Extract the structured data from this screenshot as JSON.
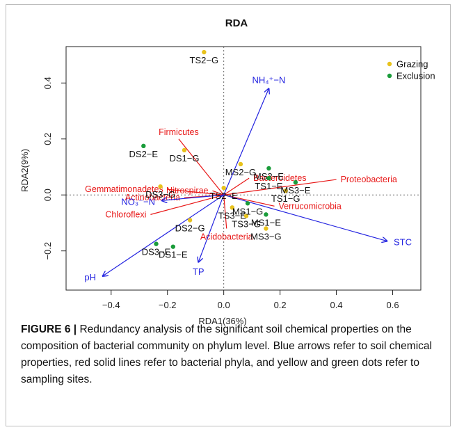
{
  "chart_data": {
    "type": "scatter",
    "title": "RDA",
    "xlabel": "RDA1(36%)",
    "ylabel": "RDA2(9%)",
    "xlim": [
      -0.56,
      0.7
    ],
    "ylim": [
      -0.34,
      0.53
    ],
    "xticks": [
      -0.4,
      -0.2,
      0.0,
      0.2,
      0.4,
      0.6
    ],
    "yticks": [
      -0.2,
      0.0,
      0.2,
      0.4
    ],
    "xtick_labels": [
      "−0.4",
      "−0.2",
      "0.0",
      "0.2",
      "0.4",
      "0.6"
    ],
    "ytick_labels": [
      "−0.2",
      "0.0",
      "0.2",
      "0.4"
    ],
    "legend_position": "top-right",
    "series": [
      {
        "name": "Grazing",
        "color": "#e8c21c",
        "points": [
          {
            "label": "TS2−G",
            "x": -0.07,
            "y": 0.51
          },
          {
            "label": "DS1−G",
            "x": -0.14,
            "y": 0.16
          },
          {
            "label": "MS2−G",
            "x": 0.06,
            "y": 0.11
          },
          {
            "label": "DS3−G",
            "x": -0.225,
            "y": 0.03
          },
          {
            "label": "TS2−E",
            "x": 0.0,
            "y": 0.025
          },
          {
            "label": "TS1−G",
            "x": 0.22,
            "y": 0.015
          },
          {
            "label": "TS3−E",
            "x": 0.03,
            "y": -0.045
          },
          {
            "label": "TS3−G",
            "x": 0.08,
            "y": -0.075
          },
          {
            "label": "DS2−G",
            "x": -0.12,
            "y": -0.09
          },
          {
            "label": "MS3−G",
            "x": 0.15,
            "y": -0.12
          }
        ]
      },
      {
        "name": "Exclusion",
        "color": "#1a9c3a",
        "points": [
          {
            "label": "DS2−E",
            "x": -0.285,
            "y": 0.175
          },
          {
            "label": "MS2−E",
            "x": 0.16,
            "y": 0.095
          },
          {
            "label": "TS1−E",
            "x": 0.16,
            "y": 0.06
          },
          {
            "label": "MS3−E",
            "x": 0.255,
            "y": 0.045
          },
          {
            "label": "MS1−G",
            "x": 0.085,
            "y": -0.03
          },
          {
            "label": "MS1−E",
            "x": 0.15,
            "y": -0.07
          },
          {
            "label": "DS3−E",
            "x": -0.24,
            "y": -0.175
          },
          {
            "label": "DS1−E",
            "x": -0.18,
            "y": -0.185
          }
        ]
      }
    ],
    "environmental_vectors": {
      "color": "#2323e0",
      "items": [
        {
          "label": "NH₄⁺−N",
          "x": 0.16,
          "y": 0.38
        },
        {
          "label": "NO₃⁻−N",
          "x": -0.22,
          "y": -0.02
        },
        {
          "label": "pH",
          "x": -0.43,
          "y": -0.29
        },
        {
          "label": "TP",
          "x": -0.09,
          "y": -0.24
        },
        {
          "label": "STC",
          "x": 0.58,
          "y": -0.165
        }
      ]
    },
    "phylum_vectors": {
      "color": "#e81818",
      "items": [
        {
          "label": "Firmicutes",
          "x": -0.16,
          "y": 0.2
        },
        {
          "label": "Bacteroidetes",
          "x": 0.09,
          "y": 0.06
        },
        {
          "label": "Proteobacteria",
          "x": 0.4,
          "y": 0.055
        },
        {
          "label": "Gemmatimonadetes",
          "x": -0.2,
          "y": 0.02
        },
        {
          "label": "Nitrospirae",
          "x": -0.04,
          "y": 0.015
        },
        {
          "label": "Actinobacteria",
          "x": -0.14,
          "y": -0.01
        },
        {
          "label": "Verrucomicrobia",
          "x": 0.18,
          "y": -0.04
        },
        {
          "label": "Chloroflexi",
          "x": -0.26,
          "y": -0.07
        },
        {
          "label": "Acidobacteria",
          "x": 0.01,
          "y": -0.12
        }
      ]
    }
  },
  "caption": {
    "label": "FIGURE 6 |",
    "text": " Redundancy analysis of the significant soil chemical properties on the composition of bacterial community on phylum level. Blue arrows refer to soil chemical properties, red solid lines refer to bacterial phyla, and yellow and green dots refer to sampling sites."
  }
}
